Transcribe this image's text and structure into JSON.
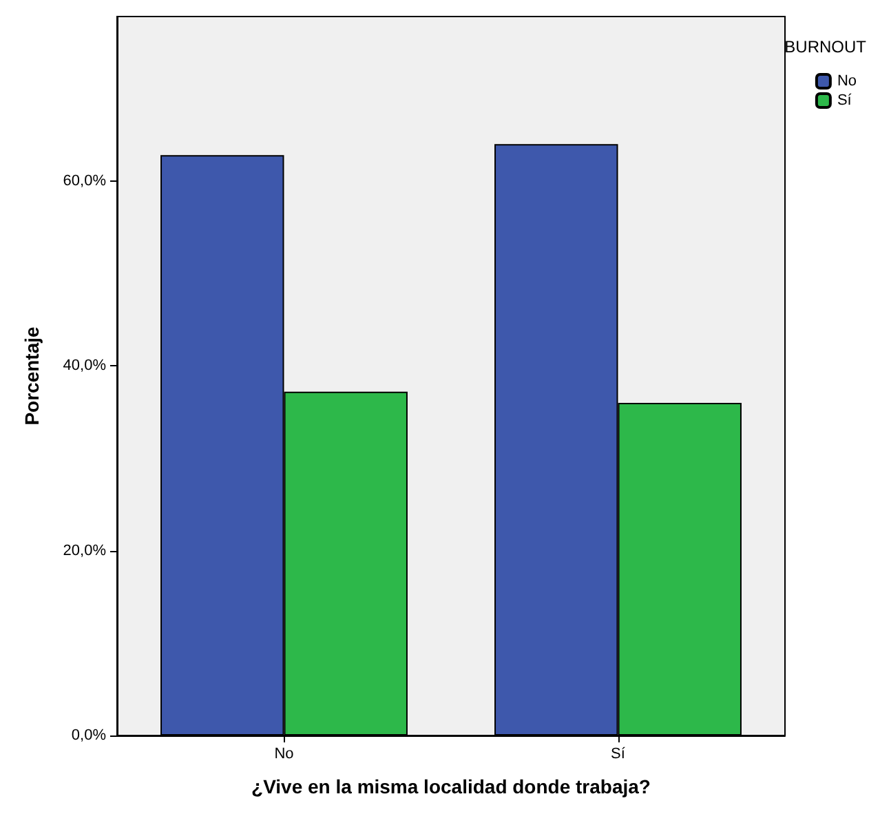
{
  "chart_data": {
    "type": "bar",
    "xlabel": "¿Vive en la misma localidad donde trabaja?",
    "ylabel": "Porcentaje",
    "legend_title": "BURNOUT",
    "categories": [
      "No",
      "Sí"
    ],
    "series": [
      {
        "name": "No",
        "color": "#3e58ac",
        "values": [
          62.8,
          64.0
        ]
      },
      {
        "name": "Sí",
        "color": "#2db84a",
        "values": [
          37.2,
          36.0
        ]
      }
    ],
    "ylim": [
      0,
      77.8
    ],
    "yticks": [
      {
        "value": 0,
        "label": "0,0%"
      },
      {
        "value": 20,
        "label": "20,0%"
      },
      {
        "value": 40,
        "label": "40,0%"
      },
      {
        "value": 60,
        "label": "60,0%"
      }
    ],
    "grid": false,
    "legend": "right"
  }
}
